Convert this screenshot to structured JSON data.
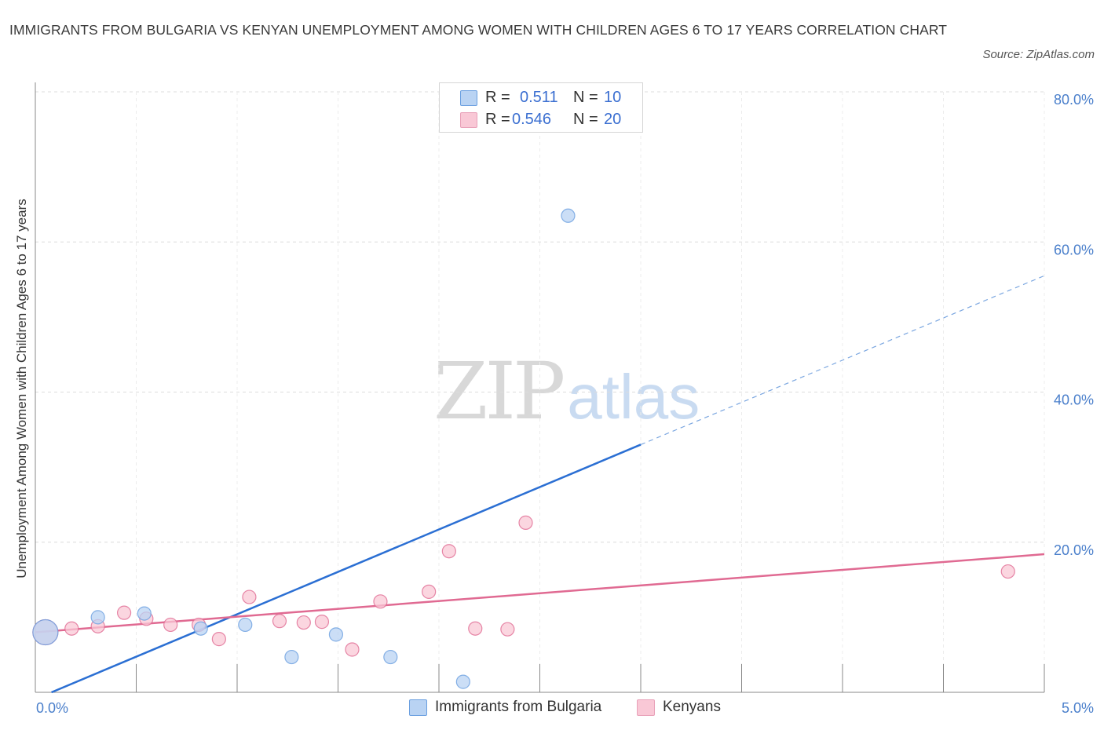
{
  "title": "IMMIGRANTS FROM BULGARIA VS KENYAN UNEMPLOYMENT AMONG WOMEN WITH CHILDREN AGES 6 TO 17 YEARS CORRELATION CHART",
  "source": "Source: ZipAtlas.com",
  "watermark": {
    "zip": "ZIP",
    "atlas": "atlas"
  },
  "legend": {
    "r_label": "R =",
    "n_label": "N =",
    "rows": [
      {
        "r": "0.511",
        "n": "10",
        "color": "#b9d3f3"
      },
      {
        "r": "0.546",
        "n": "20",
        "color": "#f9c8d6"
      }
    ]
  },
  "bottom_legend": [
    {
      "label": "Immigrants from Bulgaria",
      "color": "#b9d3f3"
    },
    {
      "label": "Kenyans",
      "color": "#f9c8d6"
    }
  ],
  "chart_data": {
    "type": "scatter",
    "title": "IMMIGRANTS FROM BULGARIA VS KENYAN UNEMPLOYMENT AMONG WOMEN WITH CHILDREN AGES 6 TO 17 YEARS CORRELATION CHART",
    "xlabel": "",
    "ylabel": "Unemployment Among Women with Children Ages 6 to 17 years",
    "xlim": [
      0,
      5
    ],
    "ylim": [
      0,
      80
    ],
    "x_tick_labels": [
      "0.0%",
      "5.0%"
    ],
    "y_ticks": [
      20,
      40,
      60,
      80
    ],
    "y_tick_labels": [
      "20.0%",
      "40.0%",
      "60.0%",
      "80.0%"
    ],
    "grid": true,
    "series": [
      {
        "name": "Immigrants from Bulgaria",
        "color": "#6a9fe0",
        "fill": "#b9d3f3",
        "points": [
          {
            "x": 0.05,
            "y": 8.0,
            "large": true
          },
          {
            "x": 0.31,
            "y": 10.0
          },
          {
            "x": 0.54,
            "y": 10.5
          },
          {
            "x": 0.82,
            "y": 8.5
          },
          {
            "x": 1.04,
            "y": 9.0
          },
          {
            "x": 1.27,
            "y": 4.7
          },
          {
            "x": 1.49,
            "y": 7.7
          },
          {
            "x": 1.76,
            "y": 4.7
          },
          {
            "x": 2.12,
            "y": 1.4
          },
          {
            "x": 2.64,
            "y": 63.5
          }
        ],
        "trend": {
          "x0": 0.08,
          "y0": 0.0,
          "x1": 3.0,
          "y1": 33.0,
          "x_dash_end": 5.0,
          "y_dash_end": 55.5
        }
      },
      {
        "name": "Kenyans",
        "color": "#e06a92",
        "fill": "#f9c8d6",
        "points": [
          {
            "x": 0.05,
            "y": 8.0,
            "large": true
          },
          {
            "x": 0.18,
            "y": 8.5
          },
          {
            "x": 0.31,
            "y": 8.8
          },
          {
            "x": 0.44,
            "y": 10.6
          },
          {
            "x": 0.55,
            "y": 9.8
          },
          {
            "x": 0.67,
            "y": 9.0
          },
          {
            "x": 0.81,
            "y": 9.0
          },
          {
            "x": 0.91,
            "y": 7.1
          },
          {
            "x": 1.06,
            "y": 12.7
          },
          {
            "x": 1.21,
            "y": 9.5
          },
          {
            "x": 1.33,
            "y": 9.3
          },
          {
            "x": 1.42,
            "y": 9.4
          },
          {
            "x": 1.57,
            "y": 5.7
          },
          {
            "x": 1.71,
            "y": 12.1
          },
          {
            "x": 1.95,
            "y": 13.4
          },
          {
            "x": 2.05,
            "y": 18.8
          },
          {
            "x": 2.18,
            "y": 8.5
          },
          {
            "x": 2.34,
            "y": 8.4
          },
          {
            "x": 2.43,
            "y": 22.6
          },
          {
            "x": 4.82,
            "y": 16.1
          }
        ],
        "trend": {
          "x0": 0.0,
          "y0": 8.0,
          "x1": 5.0,
          "y1": 18.4
        }
      }
    ]
  }
}
